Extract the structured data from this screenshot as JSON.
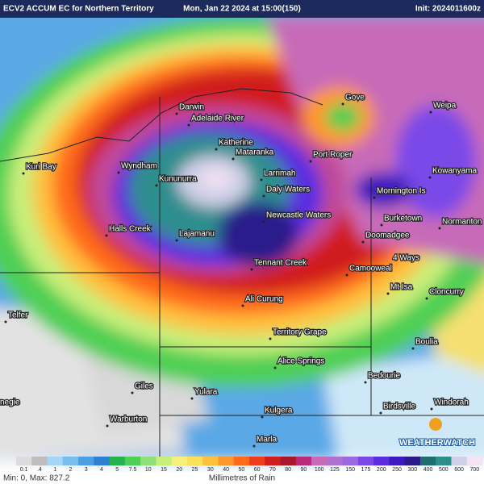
{
  "header": {
    "left": "ECV2 ACCUM EC for Northern Territory",
    "center": "Mon, Jan 22 2024 at 15:00(150)",
    "right": "Init: 2024011600z"
  },
  "places": [
    "Darwin",
    "Adelaide River",
    "Gove",
    "Weipa",
    "Katherine",
    "Mataranka",
    "Port Roper",
    "Kuri Bay",
    "Wyndham",
    "Kununurra",
    "Larrimah",
    "Kowanyama",
    "Daly Waters",
    "Mornington Is",
    "Newcastle Waters",
    "Burketown",
    "Normanton",
    "Halls Creek",
    "Lajamanu",
    "Doomadgee",
    "4 Ways",
    "Tennant Creek",
    "Camooweal",
    "Mt Isa",
    "Cloncurry",
    "Telfer",
    "Ali Curung",
    "Territory Grape",
    "Boulia",
    "Alice Springs",
    "Bedourie",
    "Giles",
    "Yulara",
    "Birdsville",
    "Windorah",
    "Kulgera",
    "Warburton",
    "Marla",
    "negie"
  ],
  "legend": {
    "title": "Millimetres of Rain",
    "labels": [
      "0.1",
      ".4",
      "1",
      "2",
      "3",
      "4",
      "5",
      "7.5",
      "10",
      "15",
      "20",
      "25",
      "30",
      "40",
      "50",
      "60",
      "70",
      "80",
      "90",
      "100",
      "125",
      "150",
      "175",
      "200",
      "250",
      "300",
      "400",
      "500",
      "600",
      "700"
    ],
    "colors": [
      "#dcdcdc",
      "#bdbdbd",
      "#a6d6f5",
      "#78bdee",
      "#4c9fe2",
      "#2f80d2",
      "#26b34e",
      "#4fcf55",
      "#8fe07a",
      "#c8ee7a",
      "#f4f07a",
      "#ffe05a",
      "#ffc03c",
      "#ff982c",
      "#ff6a1c",
      "#ee3c1c",
      "#d01e1e",
      "#a8182a",
      "#bb2a78",
      "#c76ab8",
      "#b070d2",
      "#9a6ae0",
      "#7a48e8",
      "#5a2ee0",
      "#3a1ac0",
      "#2a1a8a",
      "#1e6e6e",
      "#2e8e8e",
      "#d0d0e8",
      "#f3e3f3"
    ]
  },
  "stats": "Min: 0, Max: 827.2",
  "brand": "WEATHERWATCH"
}
